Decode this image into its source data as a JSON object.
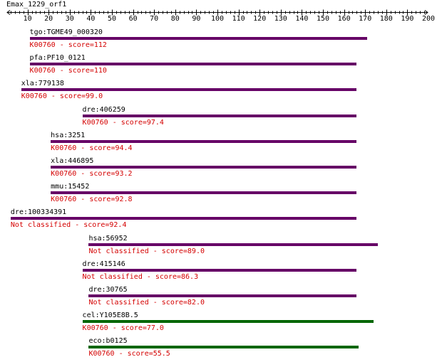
{
  "title": "Emax_1229_orf1",
  "axis": {
    "min": 0,
    "max": 200,
    "labels": [
      "10",
      "20",
      "30",
      "40",
      "50",
      "60",
      "70",
      "80",
      "90",
      "100",
      "110",
      "120",
      "130",
      "140",
      "150",
      "160",
      "170",
      "180",
      "190",
      "200"
    ]
  },
  "colors": {
    "purple": "#660066",
    "green": "#006600",
    "score": "#d40000"
  },
  "hits": [
    {
      "name": "tgo:TGME49_000320",
      "label": "K00760 - score=112",
      "start": 11,
      "end": 171,
      "color": "purple"
    },
    {
      "name": "pfa:PF10_0121",
      "label": "K00760 - score=110",
      "start": 11,
      "end": 166,
      "color": "purple"
    },
    {
      "name": "xla:779138",
      "label": "K00760 - score=99.0",
      "start": 7,
      "end": 166,
      "color": "purple"
    },
    {
      "name": "dre:406259",
      "label": "K00760 - score=97.4",
      "start": 36,
      "end": 166,
      "color": "purple"
    },
    {
      "name": "hsa:3251",
      "label": "K00760 - score=94.4",
      "start": 21,
      "end": 166,
      "color": "purple"
    },
    {
      "name": "xla:446895",
      "label": "K00760 - score=93.2",
      "start": 21,
      "end": 166,
      "color": "purple"
    },
    {
      "name": "mmu:15452",
      "label": "K00760 - score=92.8",
      "start": 21,
      "end": 166,
      "color": "purple"
    },
    {
      "name": "dre:100334391",
      "label": "Not classified - score=92.4",
      "start": 2,
      "end": 166,
      "color": "purple"
    },
    {
      "name": "hsa:56952",
      "label": "Not classified - score=89.0",
      "start": 39,
      "end": 176,
      "color": "purple"
    },
    {
      "name": "dre:415146",
      "label": "Not classified - score=86.3",
      "start": 36,
      "end": 166,
      "color": "purple"
    },
    {
      "name": "dre:30765",
      "label": "Not classified - score=82.0",
      "start": 39,
      "end": 166,
      "color": "purple"
    },
    {
      "name": "cel:Y105E8B.5",
      "label": "K00760 - score=77.0",
      "start": 36,
      "end": 174,
      "color": "green"
    },
    {
      "name": "eco:b0125",
      "label": "K00760 - score=55.5",
      "start": 39,
      "end": 167,
      "color": "green"
    }
  ]
}
